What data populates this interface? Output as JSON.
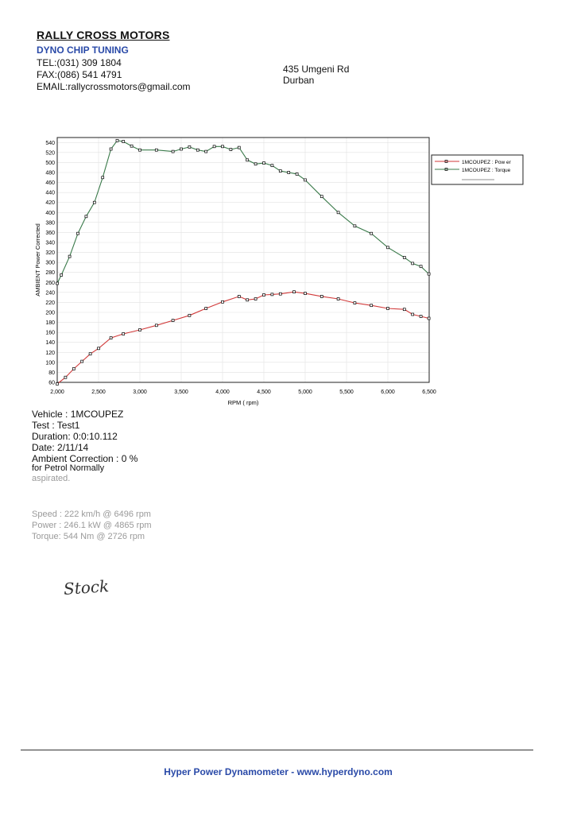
{
  "header": {
    "company": "RALLY CROSS MOTORS",
    "subtitle": "DYNO CHIP TUNING",
    "tel": "TEL:(031) 309 1804",
    "fax": "FAX:(086) 541 4791",
    "email": "EMAIL:rallycrossmotors@gmail.com",
    "address_line1": "435 Umgeni Rd",
    "address_line2": "Durban"
  },
  "chart_data": {
    "type": "line",
    "xlabel": "RPM ( rpm)",
    "ylabel": "AMBIENT Power Corrected",
    "xlim": [
      2000,
      6500
    ],
    "ylim": [
      60,
      550
    ],
    "x_ticks": [
      "2,000",
      "2,500",
      "3,000",
      "3,500",
      "4,000",
      "4,500",
      "5,000",
      "5,500",
      "6,000",
      "6,500"
    ],
    "y_ticks": [
      "60",
      "80",
      "100",
      "120",
      "140",
      "160",
      "180",
      "200",
      "220",
      "240",
      "260",
      "280",
      "300",
      "320",
      "340",
      "360",
      "380",
      "400",
      "420",
      "440",
      "460",
      "480",
      "500",
      "520",
      "540"
    ],
    "grid": true,
    "legend_position": "right",
    "series": [
      {
        "name": "1MCOUPEZ : Pow er",
        "color": "#d13a3a",
        "x": [
          2000,
          2100,
          2200,
          2300,
          2400,
          2500,
          2650,
          2800,
          3000,
          3200,
          3400,
          3600,
          3800,
          4000,
          4200,
          4300,
          4400,
          4500,
          4600,
          4700,
          4865,
          5000,
          5200,
          5400,
          5600,
          5800,
          6000,
          6200,
          6300,
          6400,
          6496
        ],
        "y": [
          57,
          70,
          87,
          102,
          117,
          128,
          149,
          157,
          165,
          174,
          184,
          194,
          208,
          221,
          232,
          225,
          227,
          235,
          236,
          237,
          241,
          238,
          232,
          227,
          219,
          214,
          208,
          206,
          196,
          192,
          188
        ]
      },
      {
        "name": "1MCOUPEZ : Torque",
        "color": "#3a7a4a",
        "x": [
          2000,
          2050,
          2150,
          2250,
          2350,
          2450,
          2550,
          2650,
          2726,
          2800,
          2900,
          3000,
          3200,
          3400,
          3500,
          3600,
          3700,
          3800,
          3900,
          4000,
          4100,
          4200,
          4300,
          4400,
          4500,
          4600,
          4700,
          4800,
          4900,
          5000,
          5200,
          5400,
          5600,
          5800,
          6000,
          6200,
          6300,
          6400,
          6496
        ],
        "y": [
          258,
          275,
          312,
          358,
          392,
          420,
          470,
          527,
          544,
          542,
          533,
          525,
          525,
          522,
          527,
          531,
          525,
          522,
          532,
          532,
          526,
          530,
          505,
          497,
          499,
          494,
          483,
          480,
          477,
          465,
          432,
          400,
          373,
          358,
          330,
          310,
          298,
          292,
          277
        ]
      }
    ]
  },
  "test_info": {
    "vehicle": "Vehicle : 1MCOUPEZ",
    "test": "Test    : Test1",
    "duration": "Duration: 0:0:10.112",
    "date": "Date: 2/11/14",
    "ambient_correction": "Ambient Correction : 0 %",
    "petrol_line1": " for Petrol Normally",
    "petrol_line2": "aspirated."
  },
  "results": {
    "speed": "Speed : 222 km/h @ 6496 rpm",
    "power": "Power : 246.1 kW @ 4865 rpm",
    "torque": "Torque: 544 Nm @ 2726 rpm"
  },
  "handwritten_note": "Stock",
  "footer": "Hyper Power Dynamometer  -  www.hyperdyno.com"
}
